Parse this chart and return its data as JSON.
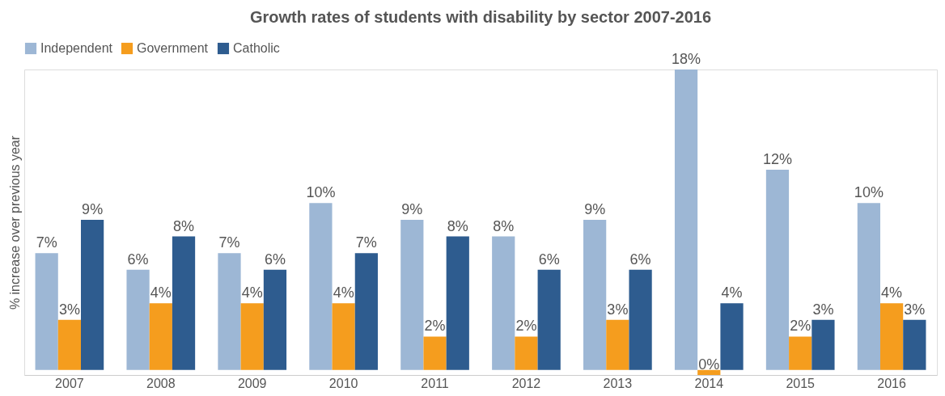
{
  "chart_data": {
    "type": "bar",
    "title": "Growth rates of students with disability by sector 2007-2016",
    "ylabel": "% increase over previous year",
    "categories": [
      "2007",
      "2008",
      "2009",
      "2010",
      "2011",
      "2012",
      "2013",
      "2014",
      "2015",
      "2016"
    ],
    "series": [
      {
        "name": "Independent",
        "color": "#9db7d5",
        "values": [
          7,
          6,
          7,
          10,
          9,
          8,
          9,
          18,
          12,
          10
        ],
        "value_labels": [
          "7%",
          "6%",
          "7%",
          "10%",
          "9%",
          "8%",
          "9%",
          "18%",
          "12%",
          "10%"
        ]
      },
      {
        "name": "Government",
        "color": "#f59d1e",
        "values": [
          3,
          4,
          4,
          4,
          2,
          2,
          3,
          -0.3,
          2,
          4
        ],
        "value_labels": [
          "3%",
          "4%",
          "4%",
          "4%",
          "2%",
          "2%",
          "3%",
          "0%",
          "2%",
          "4%"
        ]
      },
      {
        "name": "Catholic",
        "color": "#2e5c8f",
        "values": [
          9,
          8,
          6,
          7,
          8,
          6,
          6,
          4,
          3,
          3
        ],
        "value_labels": [
          "9%",
          "8%",
          "6%",
          "7%",
          "8%",
          "6%",
          "6%",
          "4%",
          "3%",
          "3%"
        ]
      }
    ],
    "legend": "top",
    "tick_labels": "x",
    "grid": false
  }
}
